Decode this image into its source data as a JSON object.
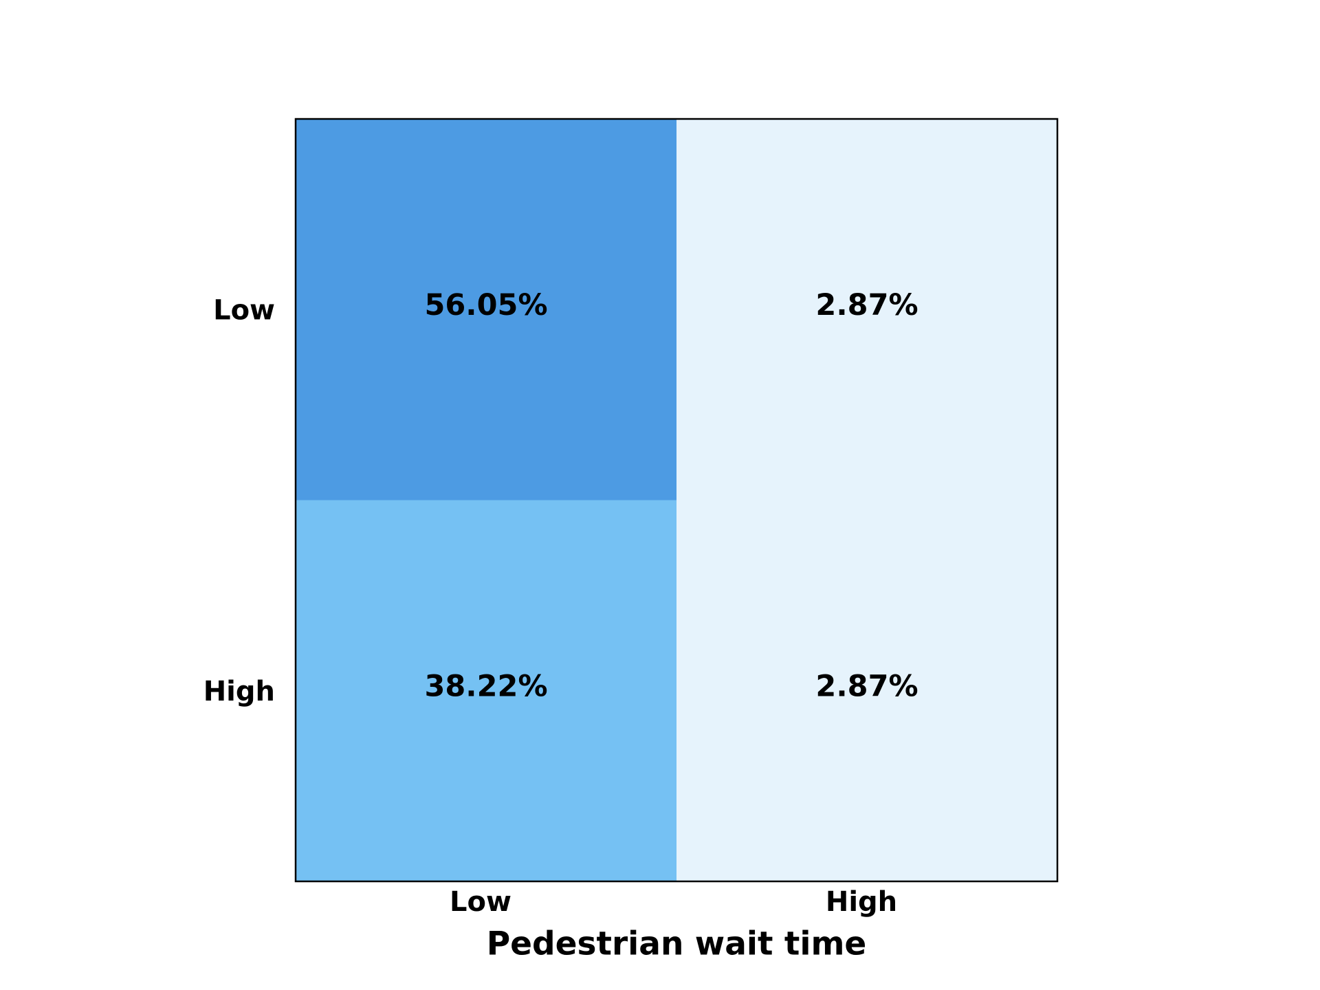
{
  "chart_data": {
    "type": "heatmap",
    "xlabel": "Pedestrian wait time",
    "x_categories": [
      "Low",
      "High"
    ],
    "y_categories": [
      "Low",
      "High"
    ],
    "values": [
      [
        56.05,
        2.87
      ],
      [
        38.22,
        2.87
      ]
    ],
    "value_labels": [
      [
        "56.05%",
        "2.87%"
      ],
      [
        "38.22%",
        "2.87%"
      ]
    ],
    "colors": [
      [
        "#4d9be3",
        "#e6f3fc"
      ],
      [
        "#75c1f3",
        "#e6f3fc"
      ]
    ]
  }
}
